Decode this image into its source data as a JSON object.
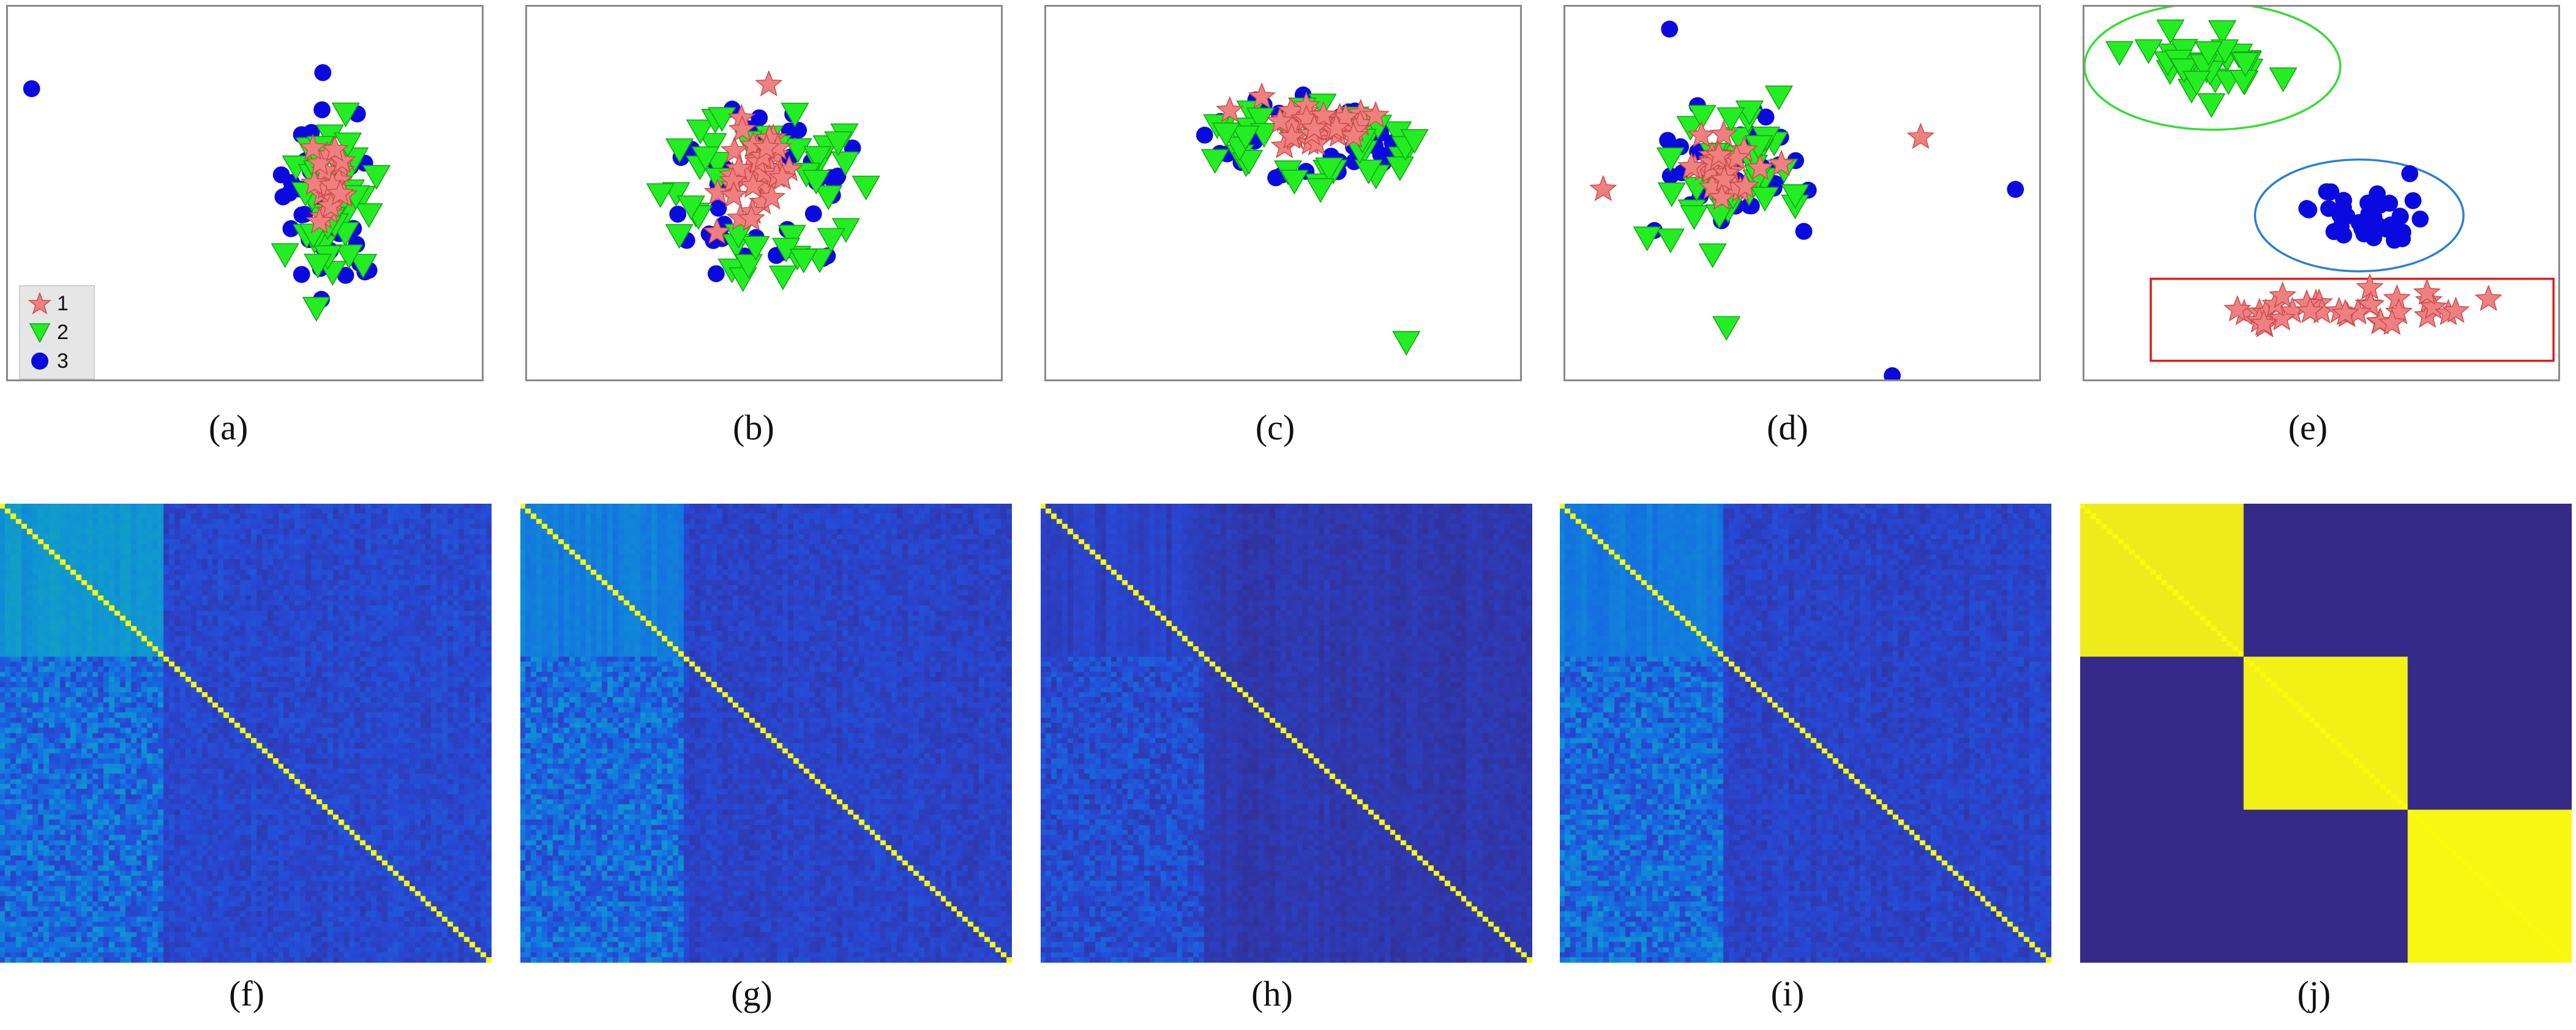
{
  "colors": {
    "class_1": "#f08080",
    "class_1_stroke": "#cc4a4a",
    "class_2": "#22ee22",
    "class_2_stroke": "#14a014",
    "class_3": "#0a0ae0",
    "ellipse_green": "#33dd33",
    "ellipse_blue": "#2a7fd4",
    "rect_red": "#e01a1a"
  },
  "legend": {
    "items": [
      {
        "label": "1",
        "marker": "star"
      },
      {
        "label": "2",
        "marker": "triangle-down"
      },
      {
        "label": "3",
        "marker": "circle"
      }
    ]
  },
  "captions": [
    "(a)",
    "(b)",
    "(c)",
    "(d)",
    "(e)",
    "(f)",
    "(g)",
    "(h)",
    "(i)",
    "(j)"
  ],
  "chart_data": [
    {
      "type": "scatter",
      "panel": "(a)",
      "series": [
        {
          "name": "1",
          "marker": "star",
          "center": [
            0.68,
            0.46
          ],
          "spread": [
            0.05,
            0.14
          ],
          "count": 22
        },
        {
          "name": "2",
          "marker": "triangle-down",
          "center": [
            0.68,
            0.52
          ],
          "spread": [
            0.12,
            0.3
          ],
          "count": 40
        },
        {
          "name": "3",
          "marker": "circle",
          "center": [
            0.68,
            0.52
          ],
          "spread": [
            0.13,
            0.34
          ],
          "count": 45
        },
        {
          "name": "3",
          "marker": "circle",
          "points": [
            [
              0.05,
              0.22
            ]
          ]
        }
      ]
    },
    {
      "type": "scatter",
      "panel": "(b)",
      "series": [
        {
          "name": "1",
          "marker": "star",
          "center": [
            0.49,
            0.45
          ],
          "spread": [
            0.11,
            0.18
          ],
          "count": 40
        },
        {
          "name": "2",
          "marker": "triangle-down",
          "center": [
            0.5,
            0.5
          ],
          "spread": [
            0.4,
            0.45
          ],
          "count": 45,
          "ring": true
        },
        {
          "name": "3",
          "marker": "circle",
          "center": [
            0.5,
            0.5
          ],
          "spread": [
            0.4,
            0.45
          ],
          "count": 40,
          "ring": true
        }
      ]
    },
    {
      "type": "scatter",
      "panel": "(c)",
      "series": [
        {
          "name": "1",
          "marker": "star",
          "center": [
            0.57,
            0.32
          ],
          "spread": [
            0.14,
            0.07
          ],
          "count": 40
        },
        {
          "name": "2",
          "marker": "triangle-down",
          "center": [
            0.55,
            0.38
          ],
          "spread": [
            0.43,
            0.22
          ],
          "count": 40,
          "ring": true
        },
        {
          "name": "3",
          "marker": "circle",
          "center": [
            0.55,
            0.35
          ],
          "spread": [
            0.43,
            0.22
          ],
          "count": 40,
          "ring": true
        },
        {
          "name": "2",
          "marker": "triangle-down",
          "points": [
            [
              0.76,
              0.9
            ]
          ]
        }
      ]
    },
    {
      "type": "scatter",
      "panel": "(d)",
      "series": [
        {
          "name": "1",
          "marker": "star",
          "center": [
            0.33,
            0.44
          ],
          "spread": [
            0.1,
            0.12
          ],
          "count": 35
        },
        {
          "name": "2",
          "marker": "triangle-down",
          "center": [
            0.35,
            0.44
          ],
          "spread": [
            0.18,
            0.26
          ],
          "count": 40
        },
        {
          "name": "3",
          "marker": "circle",
          "center": [
            0.36,
            0.44
          ],
          "spread": [
            0.17,
            0.26
          ],
          "count": 40
        },
        {
          "name": "1",
          "marker": "star",
          "points": [
            [
              0.08,
              0.49
            ],
            [
              0.75,
              0.35
            ]
          ]
        },
        {
          "name": "3",
          "marker": "circle",
          "points": [
            [
              0.22,
              0.06
            ],
            [
              0.95,
              0.49
            ],
            [
              0.69,
              0.99
            ]
          ]
        },
        {
          "name": "2",
          "marker": "triangle-down",
          "points": [
            [
              0.34,
              0.86
            ]
          ]
        }
      ]
    },
    {
      "type": "scatter",
      "panel": "(e)",
      "series": [
        {
          "name": "2",
          "marker": "triangle-down",
          "center": [
            0.25,
            0.16
          ],
          "spread": [
            0.18,
            0.11
          ],
          "count": 35
        },
        {
          "name": "3",
          "marker": "circle",
          "center": [
            0.57,
            0.56
          ],
          "spread": [
            0.17,
            0.11
          ],
          "count": 35
        },
        {
          "name": "1",
          "marker": "star",
          "center": [
            0.58,
            0.82
          ],
          "spread": [
            0.37,
            0.06
          ],
          "count": 35
        }
      ],
      "shapes": [
        {
          "type": "ellipse",
          "color": "ellipse_green",
          "center": [
            0.27,
            0.16
          ],
          "radius": [
            0.27,
            0.17
          ]
        },
        {
          "type": "ellipse",
          "color": "ellipse_blue",
          "center": [
            0.58,
            0.56
          ],
          "radius": [
            0.22,
            0.15
          ]
        },
        {
          "type": "rect",
          "color": "rect_red",
          "from": [
            0.14,
            0.73
          ],
          "to": [
            0.99,
            0.95
          ]
        }
      ]
    },
    {
      "type": "heatmap",
      "panel": "(f)",
      "n": 90,
      "block": 30,
      "upper_left": 0.45,
      "lower_left": 0.3,
      "right": 0.16,
      "diag": 1.0
    },
    {
      "type": "heatmap",
      "panel": "(g)",
      "n": 90,
      "block": 30,
      "upper_left": 0.36,
      "lower_left": 0.3,
      "right": 0.14,
      "diag": 1.0
    },
    {
      "type": "heatmap",
      "panel": "(h)",
      "n": 90,
      "block": 30,
      "upper_left": 0.12,
      "lower_left": 0.18,
      "right": 0.08,
      "diag": 1.0
    },
    {
      "type": "heatmap",
      "panel": "(i)",
      "n": 90,
      "block": 30,
      "upper_left": 0.34,
      "lower_left": 0.3,
      "right": 0.14,
      "diag": 1.0
    },
    {
      "type": "heatmap",
      "panel": "(j)",
      "n": 90,
      "blocks": 3,
      "block_value": 0.96,
      "off": 0.0,
      "diag": 1.0
    }
  ]
}
